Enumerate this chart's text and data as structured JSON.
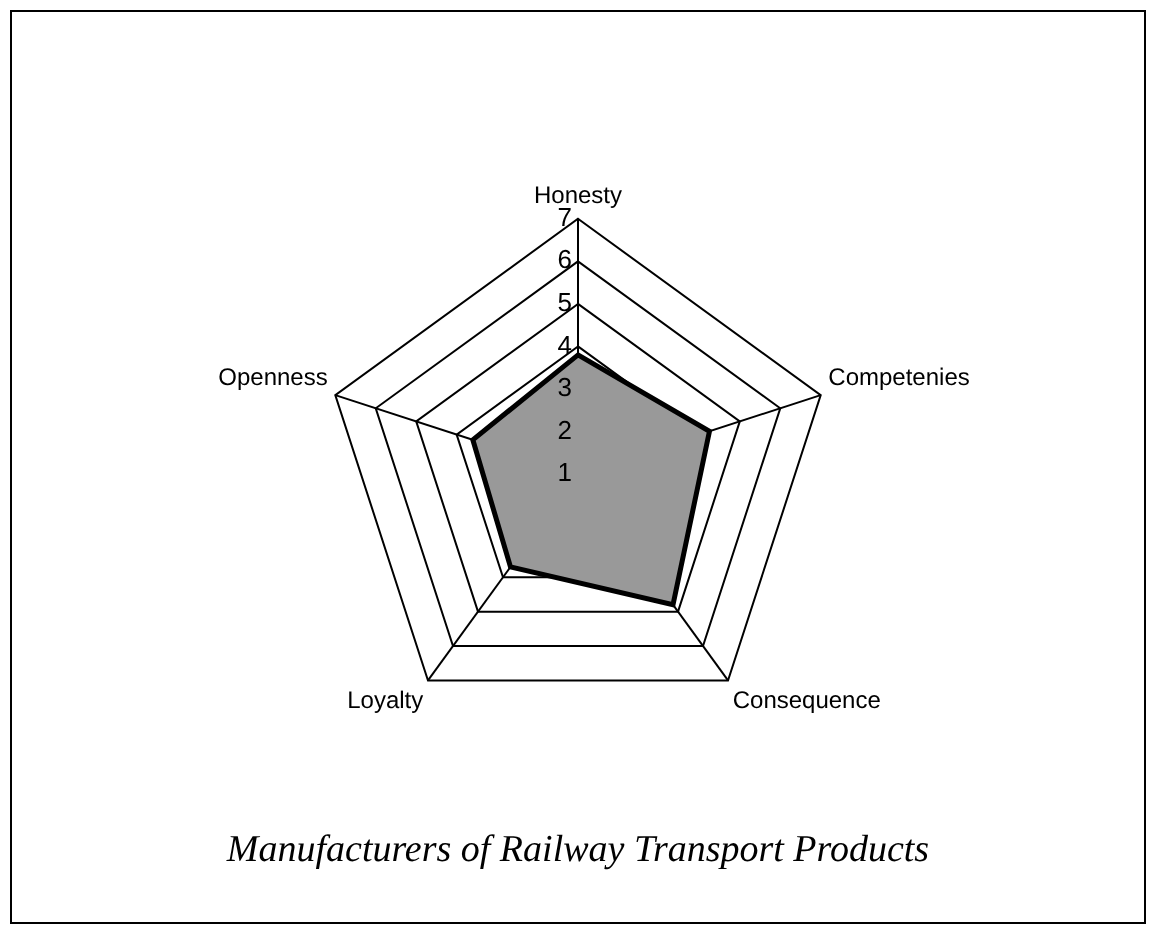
{
  "chart_data": {
    "type": "radar",
    "title": "Manufacturers of Railway Transport Products",
    "categories": [
      "Honesty",
      "Competenies",
      "Consequence",
      "Loyalty",
      "Openness"
    ],
    "series": [
      {
        "color": "#999999",
        "values": [
          3.8,
          4.25,
          4.8,
          3.7,
          3.6
        ]
      }
    ],
    "ylim": [
      1,
      7
    ],
    "yticks": [
      1,
      2,
      3,
      4,
      5,
      6,
      7
    ],
    "grid": true,
    "legend": false,
    "marker": "none"
  }
}
